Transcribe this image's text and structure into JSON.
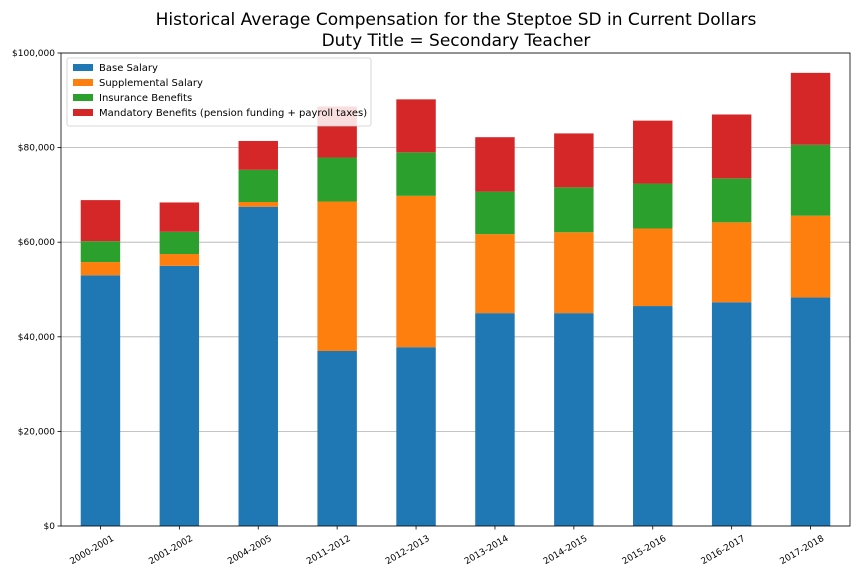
{
  "chart_data": {
    "type": "bar",
    "stacked": true,
    "title": "Historical Average Compensation for the Steptoe SD in Current Dollars",
    "subtitle": "Duty Title = Secondary Teacher",
    "xlabel": "",
    "ylabel": "",
    "ylim": [
      0,
      100000
    ],
    "yticks": [
      0,
      20000,
      40000,
      60000,
      80000,
      100000
    ],
    "ytick_labels": [
      "$0",
      "$20,000",
      "$40,000",
      "$60,000",
      "$80,000",
      "$100,000"
    ],
    "grid": "horizontal",
    "legend_position": "top-left",
    "categories": [
      "2000-2001",
      "2001-2002",
      "2004-2005",
      "2011-2012",
      "2012-2013",
      "2013-2014",
      "2014-2015",
      "2015-2016",
      "2016-2017",
      "2017-2018"
    ],
    "series": [
      {
        "name": "Base Salary",
        "color": "#1f77b4",
        "values": [
          53000,
          55000,
          67500,
          37000,
          37800,
          45000,
          45000,
          46500,
          47300,
          48300
        ]
      },
      {
        "name": "Supplemental Salary",
        "color": "#ff7f0e",
        "values": [
          2800,
          2500,
          1000,
          31600,
          32000,
          16700,
          17100,
          16400,
          16900,
          17300
        ]
      },
      {
        "name": "Insurance Benefits",
        "color": "#2ca02c",
        "values": [
          4400,
          4700,
          6800,
          9300,
          9200,
          9000,
          9500,
          9500,
          9300,
          15000
        ]
      },
      {
        "name": "Mandatory Benefits (pension funding + payroll taxes)",
        "color": "#d62728",
        "values": [
          8700,
          6200,
          6100,
          10800,
          11200,
          11500,
          11400,
          13300,
          13500,
          15200
        ]
      }
    ]
  }
}
